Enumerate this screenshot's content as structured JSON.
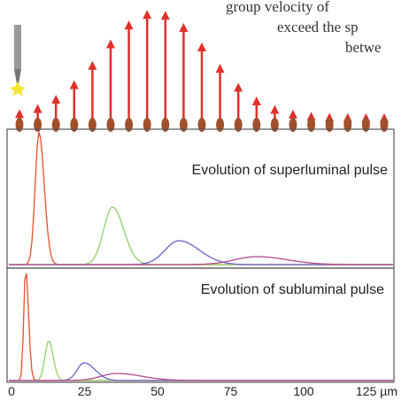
{
  "body_text": [
    "group velocity of",
    "exceed the sp",
    "betwe"
  ],
  "panels": [
    {
      "title": "Evolution of superluminal pulse"
    },
    {
      "title": "Evolution of subluminal pulse"
    }
  ],
  "x_axis": {
    "xlim": [
      0,
      130
    ],
    "xticks": [
      0,
      25,
      50,
      75,
      100,
      {
        "value": 125,
        "label": "125 µm"
      }
    ]
  }
}
